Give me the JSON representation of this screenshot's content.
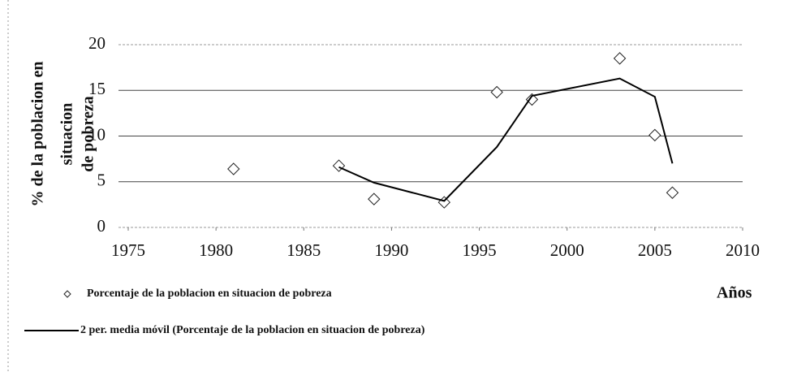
{
  "chart_data": {
    "type": "scatter",
    "ylabel": [
      "% de la poblacion en",
      "situacion",
      "de pobreza"
    ],
    "xlabel": "Años",
    "x": [
      1981,
      1987,
      1989,
      1993,
      1996,
      1998,
      2003,
      2005,
      2006
    ],
    "series": [
      {
        "name": "Porcentaje de la poblacion en situacion de pobreza",
        "color": "#222",
        "marker": "diamond",
        "values": [
          6.4,
          6.75,
          3.1,
          2.75,
          14.8,
          14.0,
          18.5,
          10.1,
          3.8
        ]
      },
      {
        "name": "2 per. media móvil (Porcentaje de la poblacion en situacion de pobreza)",
        "color": "#000",
        "marker": "line",
        "values": [
          null,
          6.6,
          4.9,
          2.9,
          8.8,
          14.4,
          16.3,
          14.3,
          7.0
        ]
      }
    ],
    "xlim": [
      1975,
      2010
    ],
    "xticks": [
      1975,
      1980,
      1985,
      1990,
      1995,
      2000,
      2005,
      2010
    ],
    "ylim": [
      0,
      20
    ],
    "yticks": [
      0,
      5,
      10,
      15,
      20
    ],
    "grid": true
  }
}
